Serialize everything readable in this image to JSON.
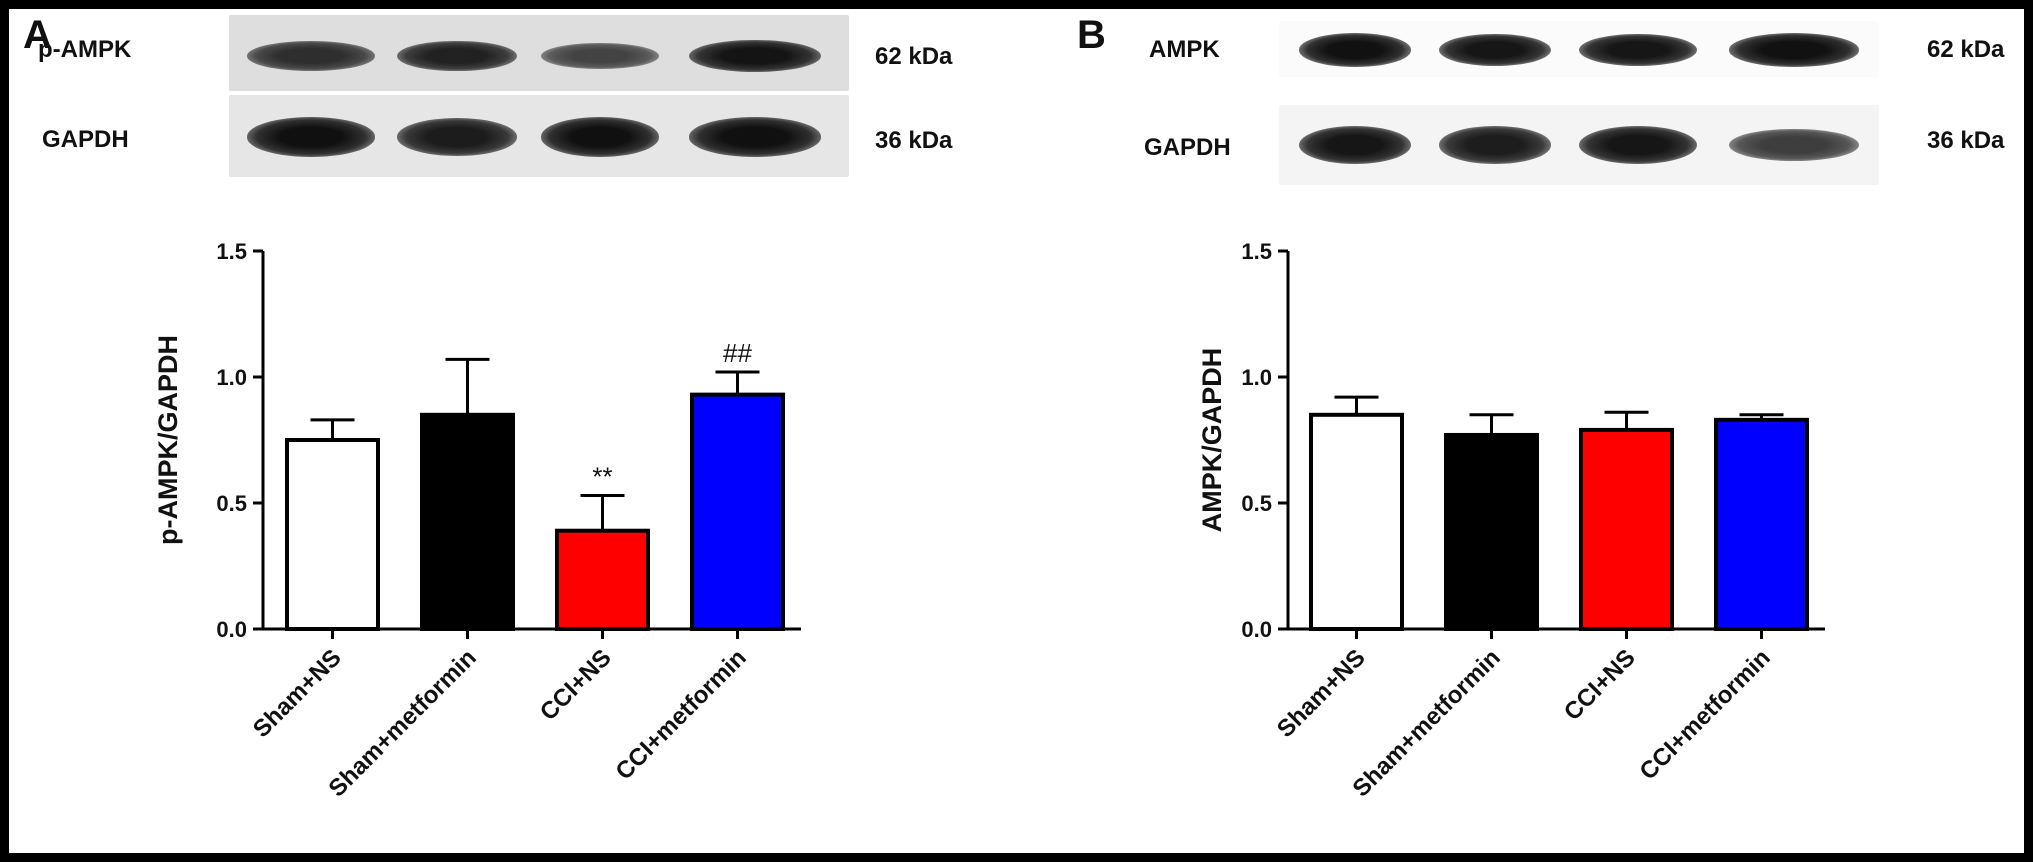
{
  "panels": [
    {
      "letter": "A",
      "blots": [
        {
          "protein": "p-AMPK",
          "kda": "62 kDa",
          "intensity": [
            0.7,
            0.8,
            0.5,
            0.9
          ]
        },
        {
          "protein": "GAPDH",
          "kda": "36 kDa",
          "intensity": [
            0.95,
            0.85,
            0.95,
            0.95
          ]
        }
      ]
    },
    {
      "letter": "B",
      "blots": [
        {
          "protein": "AMPK",
          "kda": "62 kDa",
          "intensity": [
            0.95,
            0.9,
            0.9,
            0.95
          ]
        },
        {
          "protein": "GAPDH",
          "kda": "36 kDa",
          "intensity": [
            0.9,
            0.85,
            0.9,
            0.6
          ]
        }
      ]
    }
  ],
  "chart_data": [
    {
      "type": "bar",
      "categories": [
        "Sham+NS",
        "Sham+metformin",
        "CCI+NS",
        "CCI+metformin"
      ],
      "values": [
        0.75,
        0.85,
        0.39,
        0.93
      ],
      "errors": [
        0.08,
        0.22,
        0.14,
        0.09
      ],
      "colors": [
        "#ffffff",
        "#000000",
        "#ff0000",
        "#0000ff"
      ],
      "annotations": [
        "",
        "",
        "**",
        "##"
      ],
      "xlabel": "",
      "ylabel": "p-AMPK/GAPDH",
      "ylim": [
        0,
        1.5
      ],
      "yticks": [
        "0.0",
        "0.5",
        "1.0",
        "1.5"
      ],
      "ytick_values": [
        0,
        0.5,
        1.0,
        1.5
      ],
      "grid": false
    },
    {
      "type": "bar",
      "categories": [
        "Sham+NS",
        "Sham+metformin",
        "CCI+NS",
        "CCI+metformin"
      ],
      "values": [
        0.85,
        0.77,
        0.79,
        0.83
      ],
      "errors": [
        0.07,
        0.08,
        0.07,
        0.02
      ],
      "colors": [
        "#ffffff",
        "#000000",
        "#ff0000",
        "#0000ff"
      ],
      "annotations": [
        "",
        "",
        "",
        ""
      ],
      "xlabel": "",
      "ylabel": "AMPK/GAPDH",
      "ylim": [
        0,
        1.5
      ],
      "yticks": [
        "0.0",
        "0.5",
        "1.0",
        "1.5"
      ],
      "ytick_values": [
        0,
        0.5,
        1.0,
        1.5
      ],
      "grid": false
    }
  ]
}
